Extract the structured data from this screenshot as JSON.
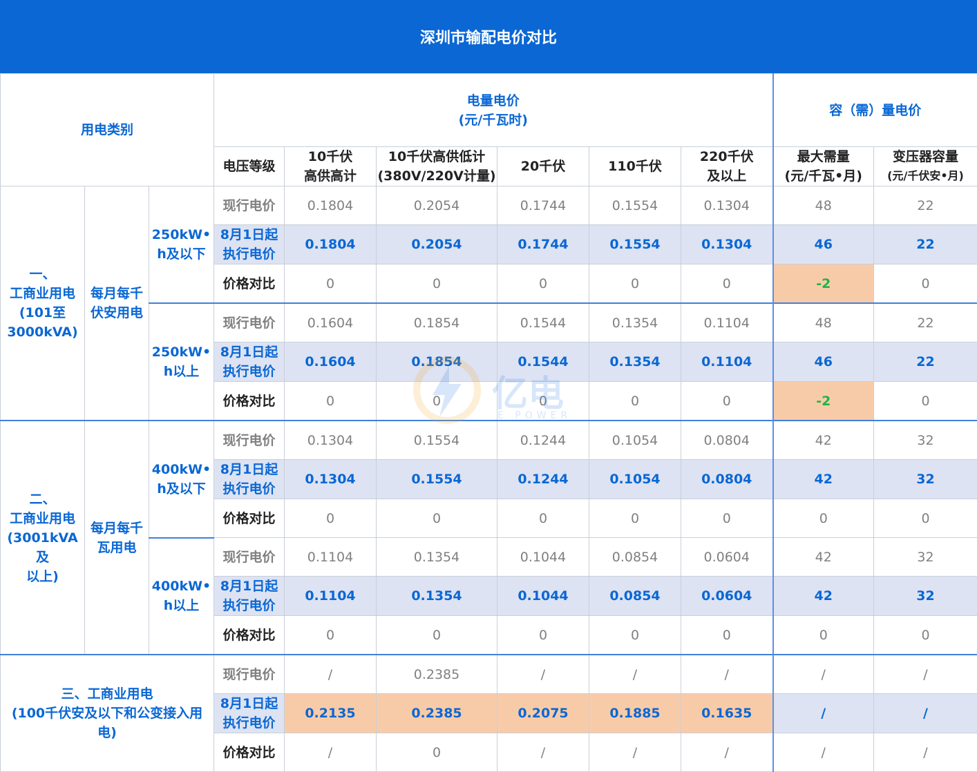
{
  "title": "深圳市输配电价对比",
  "header": {
    "category": "用电类别",
    "energy_price": "电量电价",
    "energy_unit": "(元/千瓦时)",
    "capacity_price": "容（需）量电价",
    "voltage_level": "电压等级",
    "col_10kv_high_l1": "10千伏",
    "col_10kv_high_l2": "高供高计",
    "col_10kv_low_l1": "10千伏高供低计",
    "col_10kv_low_l2": "(380V/220V计量)",
    "col_20kv": "20千伏",
    "col_110kv": "110千伏",
    "col_220kv_l1": "220千伏",
    "col_220kv_l2": "及以上",
    "col_maxdemand_l1": "最大需量",
    "col_maxdemand_l2": "(元/千瓦•月)",
    "col_transformer_l1": "变压器容量",
    "col_transformer_l2": "(元/千伏安•月)"
  },
  "labels": {
    "current": "现行电价",
    "new_l1": "8月1日起",
    "new_l2": "执行电价",
    "compare": "价格对比"
  },
  "groups": {
    "g1": {
      "name_l1": "一、",
      "name_l2": "工商业用电",
      "name_l3": "(101至",
      "name_l4": "3000kVA)",
      "sub_l1": "每月每千",
      "sub_l2": "伏安用电",
      "tier_a_l1": "250kW•",
      "tier_a_l2": "h及以下",
      "tier_b_l1": "250kW•",
      "tier_b_l2": "h以上"
    },
    "g2": {
      "name_l1": "二、",
      "name_l2": "工商业用电",
      "name_l3": "(3001kVA及",
      "name_l4": "以上)",
      "sub_l1": "每月每千",
      "sub_l2": "瓦用电",
      "tier_a_l1": "400kW•",
      "tier_a_l2": "h及以下",
      "tier_b_l1": "400kW•",
      "tier_b_l2": "h以上"
    },
    "g3": {
      "name_l1": "三、工商业用电",
      "name_l2": "(100千伏安及以下和公变接入用",
      "name_l3": "电)"
    }
  },
  "rows": {
    "g1a_cur": [
      "0.1804",
      "0.2054",
      "0.1744",
      "0.1554",
      "0.1304",
      "48",
      "22"
    ],
    "g1a_new": [
      "0.1804",
      "0.2054",
      "0.1744",
      "0.1554",
      "0.1304",
      "46",
      "22"
    ],
    "g1a_cmp": [
      "0",
      "0",
      "0",
      "0",
      "0",
      "-2",
      "0"
    ],
    "g1b_cur": [
      "0.1604",
      "0.1854",
      "0.1544",
      "0.1354",
      "0.1104",
      "48",
      "22"
    ],
    "g1b_new": [
      "0.1604",
      "0.1854",
      "0.1544",
      "0.1354",
      "0.1104",
      "46",
      "22"
    ],
    "g1b_cmp": [
      "0",
      "0",
      "0",
      "0",
      "0",
      "-2",
      "0"
    ],
    "g2a_cur": [
      "0.1304",
      "0.1554",
      "0.1244",
      "0.1054",
      "0.0804",
      "42",
      "32"
    ],
    "g2a_new": [
      "0.1304",
      "0.1554",
      "0.1244",
      "0.1054",
      "0.0804",
      "42",
      "32"
    ],
    "g2a_cmp": [
      "0",
      "0",
      "0",
      "0",
      "0",
      "0",
      "0"
    ],
    "g2b_cur": [
      "0.1104",
      "0.1354",
      "0.1044",
      "0.0854",
      "0.0604",
      "42",
      "32"
    ],
    "g2b_new": [
      "0.1104",
      "0.1354",
      "0.1044",
      "0.0854",
      "0.0604",
      "42",
      "32"
    ],
    "g2b_cmp": [
      "0",
      "0",
      "0",
      "0",
      "0",
      "0",
      "0"
    ],
    "g3_cur": [
      "/",
      "0.2385",
      "/",
      "/",
      "/",
      "/",
      "/"
    ],
    "g3_new": [
      "0.2135",
      "0.2385",
      "0.2075",
      "0.1885",
      "0.1635",
      "/",
      "/"
    ],
    "g3_cmp": [
      "/",
      "0",
      "/",
      "/",
      "/",
      "/",
      "/"
    ]
  },
  "watermark": {
    "text": "亿电",
    "sub": "E POWER"
  },
  "colors": {
    "header_blue": "#0a67d4",
    "shaded_row": "#dde3f3",
    "highlight_peach": "#f8cba8",
    "negative_green": "#1db547"
  }
}
